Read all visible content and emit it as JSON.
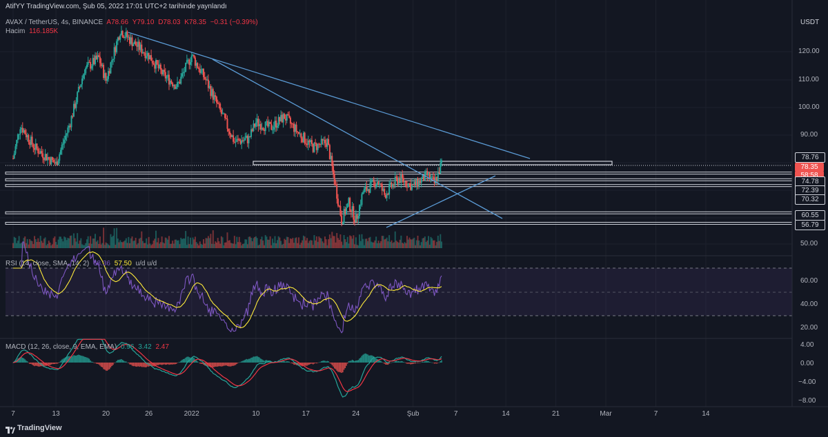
{
  "header": {
    "publisher_line": "AtifYY TradingView.com, Şub 05, 2022 17:01 UTC+2 tarihinde yaynlandı",
    "symbol": "AVAX / TetherUS, 4s, BINANCE",
    "open": "A78.66",
    "high": "Y79.10",
    "low": "D78.03",
    "close": "K78.35",
    "change": "−0.31 (−0.39%)",
    "volume_label": "Hacim",
    "volume_value": "116.185K",
    "currency": "USDT"
  },
  "price_axis": {
    "ticks": [
      "120.00",
      "110.00",
      "100.00",
      "90.00",
      "50.00"
    ],
    "levels": [
      "78.76",
      "74.78",
      "72.39",
      "70.32",
      "60.55",
      "56.79"
    ],
    "current_price": "78.35",
    "countdown": "58:58"
  },
  "rsi": {
    "header": "RSI (14, close, SMA, 14, 2)",
    "value1": "68.36",
    "value2": "57.50",
    "value3": "u/d u/d",
    "ticks": [
      "60.00",
      "40.00",
      "20.00"
    ]
  },
  "macd": {
    "header": "MACD (12, 26, close, 9, EMA, EMA)",
    "value1": "0.96",
    "value2": "3.42",
    "value3": "2.47",
    "ticks": [
      "4.00",
      "0.00",
      "−4.00",
      "−8.00"
    ]
  },
  "time_axis": {
    "labels": [
      "7",
      "13",
      "20",
      "26",
      "2022",
      "10",
      "17",
      "24",
      "Şub",
      "7",
      "14",
      "21",
      "Mar",
      "7",
      "14"
    ]
  },
  "footer": {
    "brand": "TradingView"
  },
  "colors": {
    "background": "#131722",
    "up": "#26a69a",
    "down": "#ef5350",
    "trendline": "#5b9bd5",
    "rsi_line": "#7e57c2",
    "signal_line": "#ffeb3b"
  },
  "chart_data": {
    "type": "candlestick",
    "symbol": "AVAX / TetherUS",
    "timeframe": "4s",
    "price_range": [
      47,
      130
    ],
    "horizontal_levels": [
      78.76,
      74.78,
      72.39,
      70.32,
      60.55,
      56.79
    ],
    "current_price": 78.35,
    "price_path": [
      {
        "x": "Dec 7",
        "y": 80
      },
      {
        "x": "Dec 8",
        "y": 92
      },
      {
        "x": "Dec 10",
        "y": 84
      },
      {
        "x": "Dec 13",
        "y": 78
      },
      {
        "x": "Dec 15",
        "y": 93
      },
      {
        "x": "Dec 17",
        "y": 112
      },
      {
        "x": "Dec 19",
        "y": 116
      },
      {
        "x": "Dec 20",
        "y": 108
      },
      {
        "x": "Dec 22",
        "y": 126
      },
      {
        "x": "Dec 24",
        "y": 121
      },
      {
        "x": "Dec 26",
        "y": 117
      },
      {
        "x": "Dec 28",
        "y": 110
      },
      {
        "x": "Dec 30",
        "y": 106
      },
      {
        "x": "Jan 1",
        "y": 117
      },
      {
        "x": "Jan 3",
        "y": 108
      },
      {
        "x": "Jan 5",
        "y": 97
      },
      {
        "x": "Jan 7",
        "y": 86
      },
      {
        "x": "Jan 9",
        "y": 87
      },
      {
        "x": "Jan 10",
        "y": 93
      },
      {
        "x": "Jan 12",
        "y": 91
      },
      {
        "x": "Jan 14",
        "y": 95
      },
      {
        "x": "Jan 16",
        "y": 89
      },
      {
        "x": "Jan 18",
        "y": 84
      },
      {
        "x": "Jan 20",
        "y": 86
      },
      {
        "x": "Jan 21",
        "y": 72
      },
      {
        "x": "Jan 22",
        "y": 58
      },
      {
        "x": "Jan 23",
        "y": 64
      },
      {
        "x": "Jan 24",
        "y": 58
      },
      {
        "x": "Jan 25",
        "y": 68
      },
      {
        "x": "Jan 27",
        "y": 72
      },
      {
        "x": "Jan 28",
        "y": 67
      },
      {
        "x": "Jan 30",
        "y": 73
      },
      {
        "x": "Feb 1",
        "y": 70
      },
      {
        "x": "Feb 3",
        "y": 74
      },
      {
        "x": "Feb 4",
        "y": 71
      },
      {
        "x": "Feb 5",
        "y": 78.35
      }
    ],
    "rsi": {
      "value": 68.36,
      "sma": 57.5,
      "upper_band": 70,
      "middle": 50,
      "lower_band": 30
    },
    "macd": {
      "macd": 3.42,
      "signal": 2.47,
      "histogram": 0.96
    }
  }
}
